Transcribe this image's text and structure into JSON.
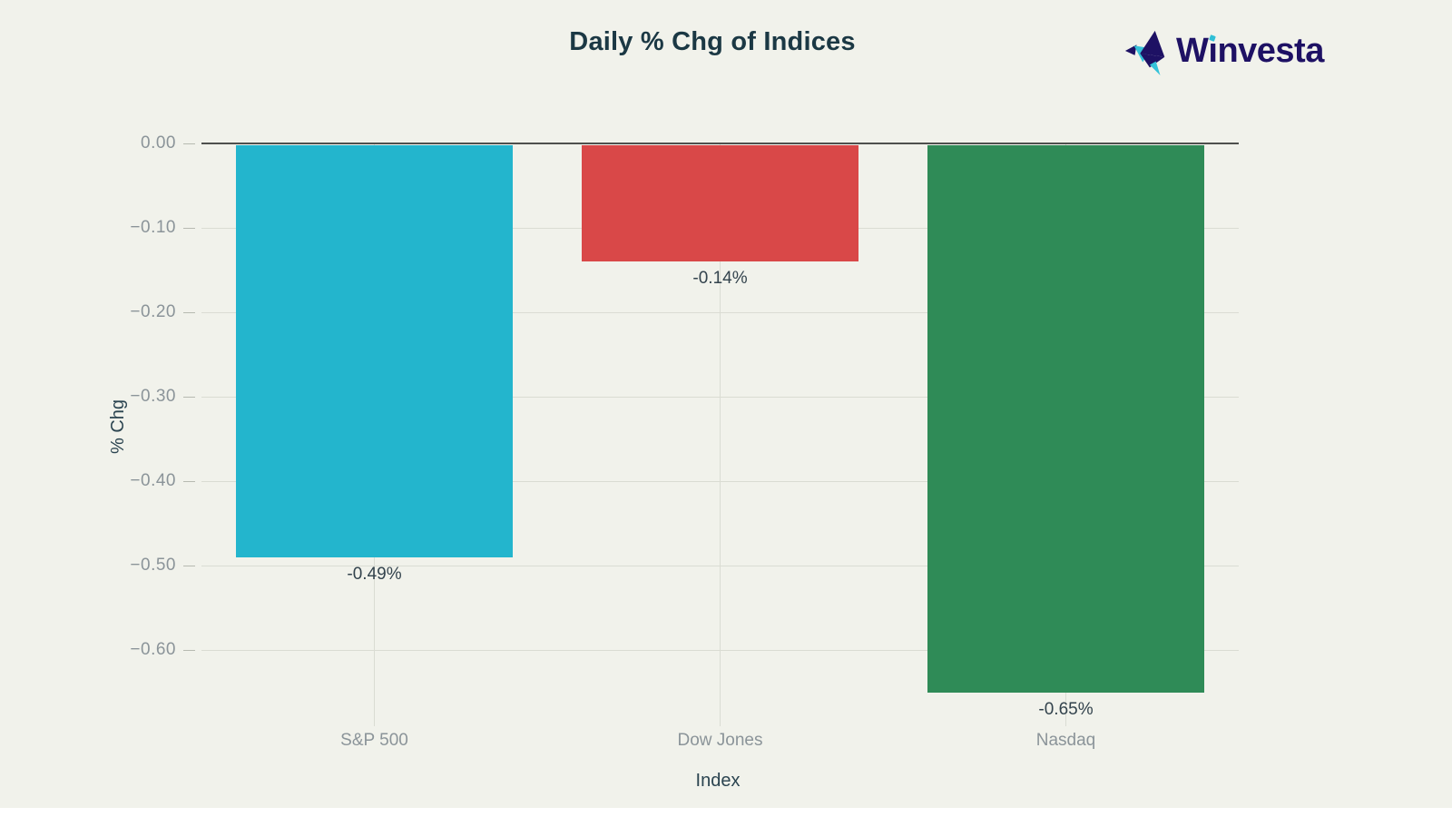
{
  "header": {
    "title": "Daily % Chg of Indices",
    "brand": {
      "w": "W",
      "dotless_i": "ı",
      "rest": "nvesta",
      "navy": "#1e1164",
      "cyan": "#2fbfd6"
    }
  },
  "chart_data": {
    "type": "bar",
    "title": "Daily % Chg of Indices",
    "xlabel": "Index",
    "ylabel": "% Chg",
    "categories": [
      "S&P 500",
      "Dow Jones",
      "Nasdaq"
    ],
    "values": [
      -0.49,
      -0.14,
      -0.65
    ],
    "value_labels": [
      "-0.49%",
      "-0.14%",
      "-0.65%"
    ],
    "bar_colors": [
      "#23b5cd",
      "#d94848",
      "#2f8b57"
    ],
    "yticks": [
      0.0,
      -0.1,
      -0.2,
      -0.3,
      -0.4,
      -0.5,
      -0.6
    ],
    "ytick_labels": [
      "0.00",
      "−0.10",
      "−0.20",
      "−0.30",
      "−0.40",
      "−0.50",
      "−0.60"
    ],
    "ylim": [
      -0.69,
      0
    ],
    "grid": true,
    "legend_position": "none",
    "background_color": "#f1f2eb"
  }
}
